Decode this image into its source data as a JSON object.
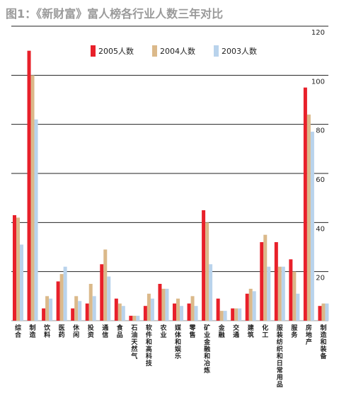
{
  "title": "图1：《新财富》富人榜各行业人数三年对比",
  "legend": {
    "s2005": "2005人数",
    "s2004": "2004人数",
    "s2003": "2003人数"
  },
  "colors": {
    "s2005": "#e8202a",
    "s2004": "#dbb98a",
    "s2003": "#b9d3ec",
    "grid": "#222222",
    "title": "#9a9a9a"
  },
  "chart_data": {
    "type": "bar",
    "title": "图1：《新财富》富人榜各行业人数三年对比",
    "xlabel": "",
    "ylabel": "",
    "ylim": [
      0,
      120
    ],
    "yticks": [
      20,
      40,
      60,
      80,
      100,
      120
    ],
    "grid": true,
    "legend_position": "top",
    "categories": [
      "综合",
      "制造",
      "饮料",
      "医药",
      "休闲",
      "投资",
      "通信",
      "食品",
      "石油天然气",
      "软件和高科技",
      "农业",
      "媒体和娱乐",
      "零售",
      "矿业金融和冶炼",
      "金融",
      "交通",
      "建筑",
      "化工",
      "服装纺织和日常用品",
      "服务",
      "房地产",
      "制造和装备"
    ],
    "series": [
      {
        "name": "2005人数",
        "values": [
          43,
          110,
          5,
          16,
          5,
          7,
          23,
          9,
          2,
          6,
          15,
          7,
          7,
          45,
          9,
          5,
          11,
          32,
          32,
          25,
          95,
          6
        ]
      },
      {
        "name": "2004人数",
        "values": [
          42,
          100,
          10,
          19,
          10,
          15,
          29,
          7,
          2,
          11,
          13,
          9,
          10,
          40,
          4,
          5,
          13,
          35,
          22,
          20,
          84,
          7
        ]
      },
      {
        "name": "2003人数",
        "values": [
          31,
          82,
          9,
          22,
          8,
          10,
          18,
          6,
          2,
          9,
          13,
          6,
          6,
          23,
          4,
          5,
          12,
          22,
          22,
          11,
          77,
          7
        ]
      }
    ]
  }
}
